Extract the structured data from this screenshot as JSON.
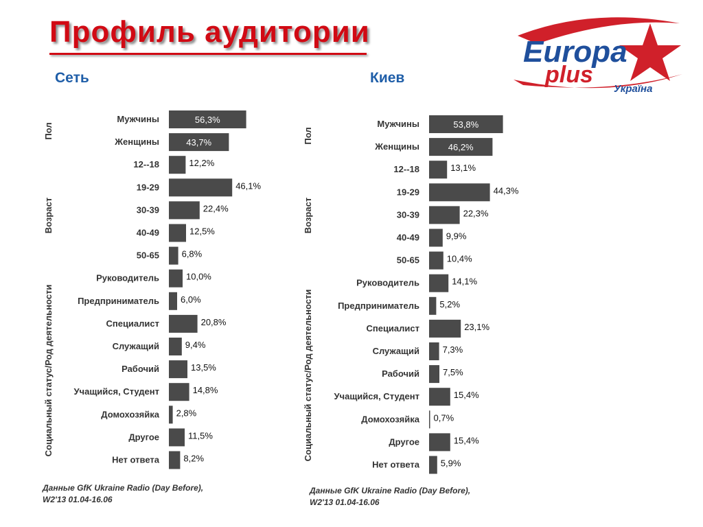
{
  "page": {
    "title": "Профиль  аудитории",
    "logo": {
      "line1": "Europa",
      "line2": "plus",
      "line3": "Україна",
      "colors": {
        "blue": "#1f4f9c",
        "red": "#d0202a"
      }
    },
    "colors": {
      "title": "#d10a14",
      "section": "#1f5ea8",
      "bar": "#4a4a4a"
    }
  },
  "chart_data": [
    {
      "type": "bar",
      "orientation": "horizontal",
      "title": "Сеть",
      "groups": [
        {
          "label": "Пол",
          "categories": [
            "Мужчины",
            "Женщины"
          ]
        },
        {
          "label": "Возраст",
          "categories": [
            "12--18",
            "19-29",
            "30-39",
            "40-49",
            "50-65"
          ]
        },
        {
          "label": "Социальный статус/Род деятельности",
          "categories": [
            "Руководитель",
            "Предприниматель",
            "Специалист",
            "Служащий",
            "Рабочий",
            "Учащийся, Студент",
            "Домохозяйка",
            "Другое",
            "Нет ответа"
          ]
        }
      ],
      "categories": [
        "Мужчины",
        "Женщины",
        "12--18",
        "19-29",
        "30-39",
        "40-49",
        "50-65",
        "Руководитель",
        "Предприниматель",
        "Специалист",
        "Служащий",
        "Рабочий",
        "Учащийся, Студент",
        "Домохозяйка",
        "Другое",
        "Нет ответа"
      ],
      "values": [
        56.3,
        43.7,
        12.2,
        46.1,
        22.4,
        12.5,
        6.8,
        10.0,
        6.0,
        20.8,
        9.4,
        13.5,
        14.8,
        2.8,
        11.5,
        8.2
      ],
      "value_labels": [
        "56,3%",
        "43,7%",
        "12,2%",
        "46,1%",
        "22,4%",
        "12,5%",
        "6,8%",
        "10,0%",
        "6,0%",
        "20,8%",
        "9,4%",
        "13,5%",
        "14,8%",
        "2,8%",
        "11,5%",
        "8,2%"
      ],
      "labels_inside": [
        true,
        true,
        false,
        false,
        false,
        false,
        false,
        false,
        false,
        false,
        false,
        false,
        false,
        false,
        false,
        false
      ],
      "source": [
        "Данные GfK Ukraine Radio (Day Before),",
        "W2'13 01.04-16.06"
      ]
    },
    {
      "type": "bar",
      "orientation": "horizontal",
      "title": "Киев",
      "groups": [
        {
          "label": "Пол",
          "categories": [
            "Мужчины",
            "Женщины"
          ]
        },
        {
          "label": "Возраст",
          "categories": [
            "12--18",
            "19-29",
            "30-39",
            "40-49",
            "50-65"
          ]
        },
        {
          "label": "Социальный статус/Род деятельности",
          "categories": [
            "Руководитель",
            "Предприниматель",
            "Специалист",
            "Служащий",
            "Рабочий",
            "Учащийся, Студент",
            "Домохозяйка",
            "Другое",
            "Нет ответа"
          ]
        }
      ],
      "categories": [
        "Мужчины",
        "Женщины",
        "12--18",
        "19-29",
        "30-39",
        "40-49",
        "50-65",
        "Руководитель",
        "Предприниматель",
        "Специалист",
        "Служащий",
        "Рабочий",
        "Учащийся, Студент",
        "Домохозяйка",
        "Другое",
        "Нет ответа"
      ],
      "values": [
        53.8,
        46.2,
        13.1,
        44.3,
        22.3,
        9.9,
        10.4,
        14.1,
        5.2,
        23.1,
        7.3,
        7.5,
        15.4,
        0.7,
        15.4,
        5.9
      ],
      "value_labels": [
        "53,8%",
        "46,2%",
        "13,1%",
        "44,3%",
        "22,3%",
        "9,9%",
        "10,4%",
        "14,1%",
        "5,2%",
        "23,1%",
        "7,3%",
        "7,5%",
        "15,4%",
        "0,7%",
        "15,4%",
        "5,9%"
      ],
      "labels_inside": [
        true,
        true,
        false,
        false,
        false,
        false,
        false,
        false,
        false,
        false,
        false,
        false,
        false,
        false,
        false,
        false
      ],
      "source": [
        "Данные GfK Ukraine Radio (Day Before),",
        "W2'13 01.04-16.06"
      ]
    }
  ]
}
